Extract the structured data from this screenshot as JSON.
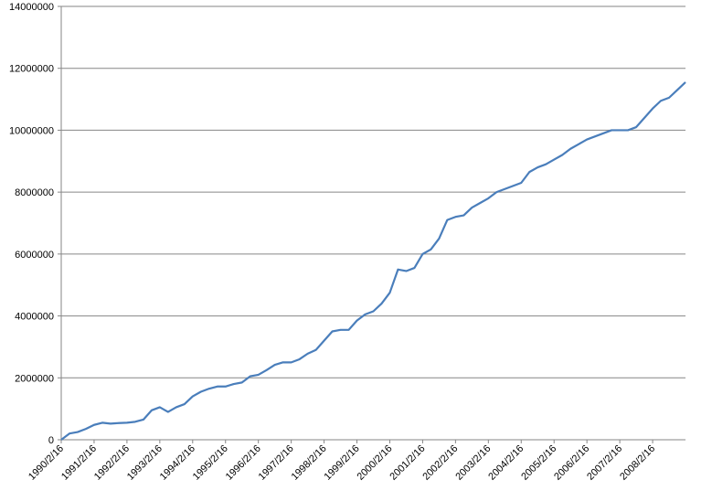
{
  "chart_data": {
    "type": "line",
    "color": "#4a7ebb",
    "grid": true,
    "categories": [
      "1990/2/16",
      null,
      null,
      null,
      "1991/2/16",
      null,
      null,
      null,
      "1992/2/16",
      null,
      null,
      null,
      "1993/2/16",
      null,
      null,
      null,
      "1994/2/16",
      null,
      null,
      null,
      "1995/2/16",
      null,
      null,
      null,
      "1996/2/16",
      null,
      null,
      null,
      "1997/2/16",
      null,
      null,
      null,
      "1998/2/16",
      null,
      null,
      null,
      "1999/2/16",
      null,
      null,
      null,
      "2000/2/16",
      null,
      null,
      null,
      "2001/2/16",
      null,
      null,
      null,
      "2002/2/16",
      null,
      null,
      null,
      "2003/2/16",
      null,
      null,
      null,
      "2004/2/16",
      null,
      null,
      null,
      "2005/2/16",
      null,
      null,
      null,
      "2006/2/16",
      null,
      null,
      null,
      "2007/2/16",
      null,
      null,
      null,
      "2008/2/16",
      null,
      null,
      null,
      null
    ],
    "values": [
      0,
      200000,
      250000,
      350000,
      480000,
      550000,
      520000,
      540000,
      550000,
      580000,
      650000,
      950000,
      1050000,
      900000,
      1050000,
      1150000,
      1400000,
      1550000,
      1650000,
      1720000,
      1720000,
      1800000,
      1850000,
      2050000,
      2100000,
      2250000,
      2420000,
      2500000,
      2500000,
      2600000,
      2780000,
      2900000,
      3200000,
      3500000,
      3550000,
      3550000,
      3850000,
      4050000,
      4150000,
      4400000,
      4750000,
      5500000,
      5450000,
      5550000,
      6000000,
      6150000,
      6500000,
      7100000,
      7200000,
      7250000,
      7500000,
      7650000,
      7800000,
      8000000,
      8100000,
      8200000,
      8300000,
      8650000,
      8800000,
      8900000,
      9050000,
      9200000,
      9400000,
      9550000,
      9700000,
      9800000,
      9900000,
      10000000,
      10000000,
      10000000,
      10100000,
      10400000,
      10700000,
      10950000,
      11050000,
      11300000,
      11550000
    ],
    "ylim": [
      0,
      14000000
    ],
    "yticks": [
      0,
      2000000,
      4000000,
      6000000,
      8000000,
      10000000,
      12000000,
      14000000
    ]
  }
}
